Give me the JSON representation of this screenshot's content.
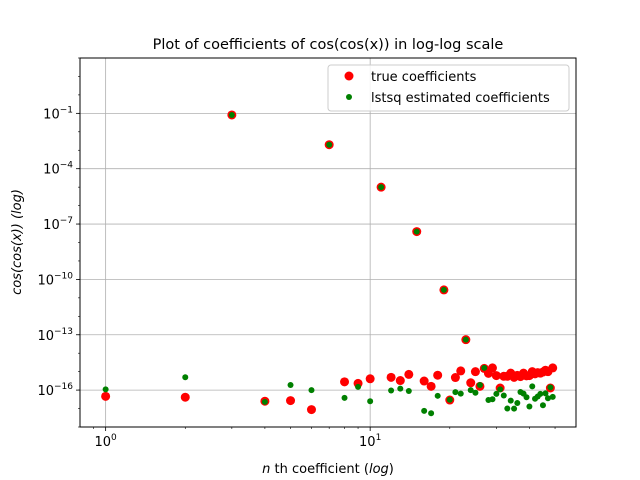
{
  "chart_data": {
    "type": "scatter",
    "title": "Plot of coefficients of cos(cos(x)) in log-log scale",
    "xlabel": {
      "prefix": "n",
      "middle": " th coefficient (",
      "italic": "log",
      "suffix": ")"
    },
    "ylabel": {
      "prefix": "cos(cos(x)) (",
      "italic": "log",
      "suffix": ")"
    },
    "xscale": "log",
    "yscale": "log",
    "xlim": [
      0.8,
      60
    ],
    "ylim": [
      1e-18,
      100
    ],
    "grid": true,
    "legend_position": "top-right",
    "x_ticks": [
      {
        "value": 1,
        "base": "10",
        "exp": "0"
      },
      {
        "value": 10,
        "base": "10",
        "exp": "1"
      }
    ],
    "y_ticks": [
      {
        "value": 1e-16,
        "base": "10",
        "exp": "−16"
      },
      {
        "value": 1e-13,
        "base": "10",
        "exp": "−13"
      },
      {
        "value": 1e-10,
        "base": "10",
        "exp": "−10"
      },
      {
        "value": 1e-07,
        "base": "10",
        "exp": "−7"
      },
      {
        "value": 0.0001,
        "base": "10",
        "exp": "−4"
      },
      {
        "value": 0.1,
        "base": "10",
        "exp": "−1"
      }
    ],
    "series": [
      {
        "name": "true coefficients",
        "color": "#ff0000",
        "marker_size": "large",
        "points": [
          [
            1,
            4.6e-17
          ],
          [
            2,
            4.1e-17
          ],
          [
            3,
            0.0815
          ],
          [
            4,
            2.5e-17
          ],
          [
            5,
            2.7e-17
          ],
          [
            6,
            8.8e-18
          ],
          [
            7,
            0.002
          ],
          [
            8,
            2.8e-16
          ],
          [
            9,
            2.3e-16
          ],
          [
            10,
            4.1e-16
          ],
          [
            11,
            1e-05
          ],
          [
            12,
            4.9e-16
          ],
          [
            13,
            3.3e-16
          ],
          [
            14,
            7.1e-16
          ],
          [
            15,
            3.9e-08
          ],
          [
            16,
            3.1e-16
          ],
          [
            17,
            1.6e-16
          ],
          [
            18,
            6.4e-16
          ],
          [
            19,
            2.7e-11
          ],
          [
            20,
            2.9e-17
          ],
          [
            21,
            4.8e-16
          ],
          [
            22,
            1.1e-15
          ],
          [
            23,
            5.4e-14
          ],
          [
            24,
            2.5e-16
          ],
          [
            25,
            1e-15
          ],
          [
            26,
            1.6e-16
          ],
          [
            27,
            1.5e-15
          ],
          [
            28,
            8.1e-16
          ],
          [
            29,
            1.6e-15
          ],
          [
            30,
            6.1e-16
          ],
          [
            31,
            1.3e-16
          ],
          [
            32,
            5.6e-16
          ],
          [
            33,
            5.6e-16
          ],
          [
            34,
            8.3e-16
          ],
          [
            35,
            4.9e-16
          ],
          [
            36,
            6.3e-16
          ],
          [
            37,
            5.4e-16
          ],
          [
            38,
            8.3e-16
          ],
          [
            39,
            5.9e-16
          ],
          [
            40,
            6.1e-16
          ],
          [
            41,
            1e-15
          ],
          [
            42,
            7.6e-16
          ],
          [
            43,
            8.8e-16
          ],
          [
            44,
            8.3e-16
          ],
          [
            45,
            9.5e-16
          ],
          [
            46,
            1.2e-15
          ],
          [
            47,
            1e-15
          ],
          [
            48,
            1.3e-16
          ],
          [
            49,
            1.6e-15
          ]
        ]
      },
      {
        "name": "lstsq estimated coefficients",
        "color": "#008000",
        "marker_size": "small",
        "points": [
          [
            1,
            1.1e-16
          ],
          [
            2,
            5e-16
          ],
          [
            3,
            0.0815
          ],
          [
            4,
            2.3e-17
          ],
          [
            5,
            1.9e-16
          ],
          [
            6,
            1e-16
          ],
          [
            7,
            0.002
          ],
          [
            8,
            3.8e-17
          ],
          [
            9,
            1.5e-16
          ],
          [
            10,
            2.5e-17
          ],
          [
            11,
            1e-05
          ],
          [
            12,
            9.5e-17
          ],
          [
            13,
            1.2e-16
          ],
          [
            14,
            9e-17
          ],
          [
            15,
            3.9e-08
          ],
          [
            16,
            7.5e-18
          ],
          [
            17,
            5.6e-18
          ],
          [
            18,
            4.9e-17
          ],
          [
            19,
            2.7e-11
          ],
          [
            20,
            3e-17
          ],
          [
            21,
            7.8e-17
          ],
          [
            22,
            6.4e-17
          ],
          [
            23,
            5.4e-14
          ],
          [
            24,
            1e-16
          ],
          [
            25,
            7.2e-17
          ],
          [
            26,
            1.9e-16
          ],
          [
            27,
            1.6e-15
          ],
          [
            28,
            2.9e-17
          ],
          [
            29,
            3.2e-17
          ],
          [
            30,
            6.2e-17
          ],
          [
            31,
            1.1e-16
          ],
          [
            32,
            5.1e-17
          ],
          [
            33,
            1e-17
          ],
          [
            34,
            2.7e-17
          ],
          [
            35,
            9.9e-18
          ],
          [
            36,
            2e-17
          ],
          [
            37,
            7.9e-17
          ],
          [
            38,
            6.4e-17
          ],
          [
            39,
            4.1e-17
          ],
          [
            40,
            1.3e-17
          ],
          [
            41,
            1.6e-16
          ],
          [
            42,
            3.4e-17
          ],
          [
            43,
            4.5e-17
          ],
          [
            44,
            6.2e-17
          ],
          [
            45,
            1.5e-17
          ],
          [
            46,
            6.6e-17
          ],
          [
            47,
            3.6e-17
          ],
          [
            48,
            1.4e-16
          ],
          [
            49,
            4.3e-17
          ]
        ]
      }
    ]
  }
}
